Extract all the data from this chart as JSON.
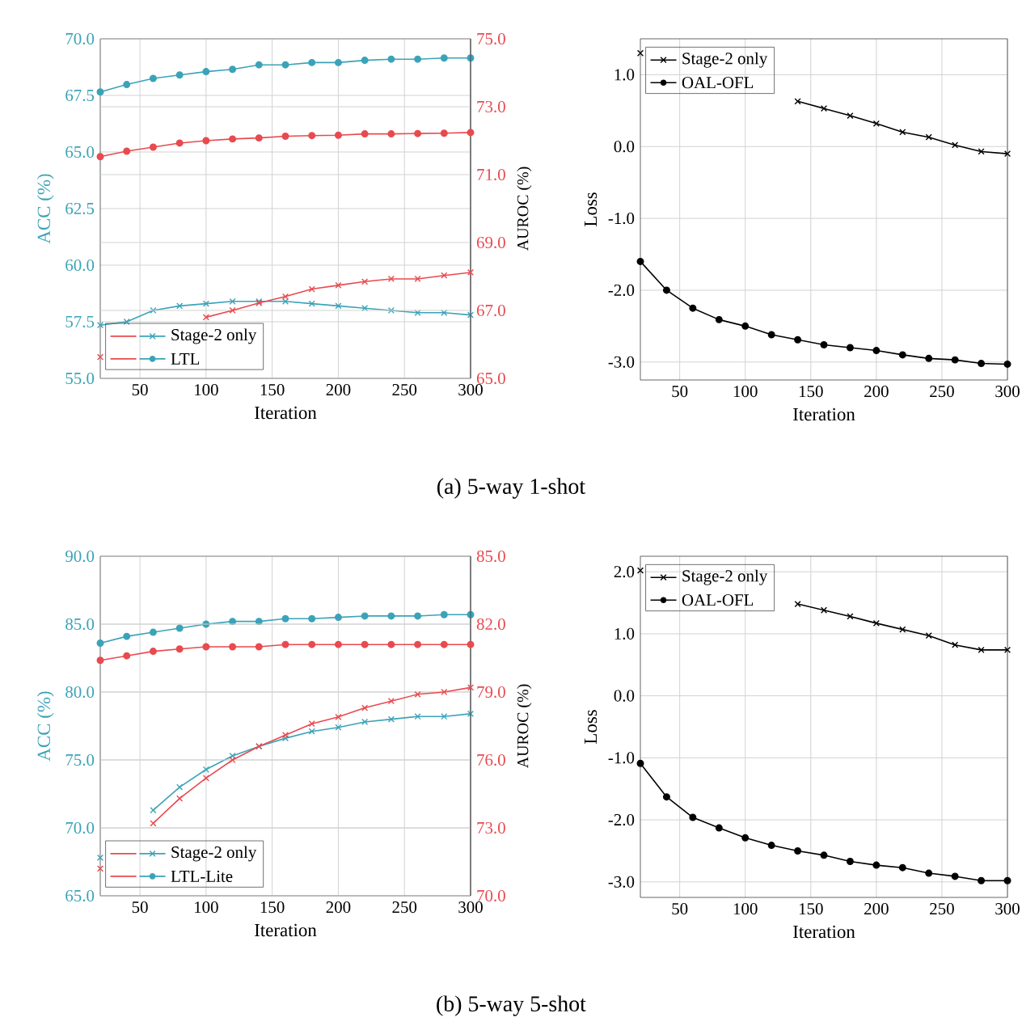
{
  "chart_data": [
    {
      "type": "line",
      "xlabel": "Iteration",
      "ylabel": "ACC (%)",
      "y2label": "AUROC (%)",
      "x": [
        20,
        40,
        60,
        80,
        100,
        120,
        140,
        160,
        180,
        200,
        220,
        240,
        260,
        280,
        300
      ],
      "xlim": [
        20,
        300
      ],
      "xticks": [
        50,
        100,
        150,
        200,
        250,
        300
      ],
      "ylim": [
        55,
        70
      ],
      "yticks": [
        {
          "value": 55,
          "label": "55.0"
        },
        {
          "value": 57.5,
          "label": "57.5"
        },
        {
          "value": 60,
          "label": "60.0"
        },
        {
          "value": 62.5,
          "label": "62.5"
        },
        {
          "value": 65,
          "label": "65.0"
        },
        {
          "value": 67.5,
          "label": "67.5"
        },
        {
          "value": 70,
          "label": "70.0"
        }
      ],
      "y2lim": [
        65,
        75
      ],
      "y2ticks": [
        {
          "value": 65,
          "label": "65.0"
        },
        {
          "value": 67,
          "label": "67.0"
        },
        {
          "value": 69,
          "label": "69.0"
        },
        {
          "value": 71,
          "label": "71.0"
        },
        {
          "value": 73,
          "label": "73.0"
        },
        {
          "value": 75,
          "label": "75.0"
        }
      ],
      "grid": true,
      "legend": "bottom left",
      "series": [
        {
          "color": "#e84a4f",
          "axis": "y2",
          "marker": "cross",
          "values": [
            65.63,
            null,
            null,
            null,
            66.8,
            67.0,
            67.22,
            67.41,
            67.63,
            67.74,
            67.85,
            67.93,
            67.93,
            68.03,
            68.12
          ]
        },
        {
          "name": "Stage-2 only",
          "color": "#3ba3b8",
          "marker": "cross",
          "values": [
            57.35,
            57.5,
            58.0,
            58.2,
            58.3,
            58.4,
            58.4,
            58.4,
            58.3,
            58.2,
            58.1,
            58.0,
            57.9,
            57.9,
            57.8
          ]
        },
        {
          "color": "#e84a4f",
          "axis": "y2",
          "marker": "circle",
          "values": [
            71.53,
            71.69,
            71.81,
            71.93,
            72.0,
            72.05,
            72.08,
            72.13,
            72.15,
            72.16,
            72.2,
            72.2,
            72.21,
            72.22,
            72.24
          ]
        },
        {
          "name": "LTL",
          "color": "#3ba3b8",
          "marker": "circle",
          "values": [
            67.65,
            67.98,
            68.25,
            68.4,
            68.55,
            68.65,
            68.85,
            68.85,
            68.95,
            68.95,
            69.05,
            69.1,
            69.1,
            69.15,
            69.15
          ]
        }
      ],
      "annotations": [
        "(a) 5-way 1-shot"
      ]
    },
    {
      "type": "line",
      "xlabel": "Iteration",
      "ylabel": "Loss",
      "x": [
        20,
        40,
        60,
        80,
        100,
        120,
        140,
        160,
        180,
        200,
        220,
        240,
        260,
        280,
        300
      ],
      "xlim": [
        20,
        300
      ],
      "xticks": [
        50,
        100,
        150,
        200,
        250,
        300
      ],
      "ylim": [
        -3.25,
        1.5
      ],
      "yticks": [
        {
          "value": -3,
          "label": "-3.0"
        },
        {
          "value": -2,
          "label": "-2.0"
        },
        {
          "value": -1,
          "label": "-1.0"
        },
        {
          "value": 0,
          "label": "0.0"
        },
        {
          "value": 1,
          "label": "1.0"
        }
      ],
      "grid": true,
      "legend": "top left",
      "series": [
        {
          "name": "Stage-2 only",
          "color": "#000000",
          "marker": "cross",
          "values": [
            1.3,
            null,
            null,
            null,
            null,
            null,
            0.63,
            0.53,
            0.43,
            0.32,
            0.2,
            0.13,
            0.02,
            -0.07,
            -0.1
          ]
        },
        {
          "name": "OAL-OFL",
          "color": "#000000",
          "marker": "circle",
          "values": [
            -1.6,
            -2.0,
            -2.25,
            -2.41,
            -2.5,
            -2.62,
            -2.69,
            -2.76,
            -2.8,
            -2.84,
            -2.9,
            -2.95,
            -2.97,
            -3.02,
            -3.03
          ]
        }
      ]
    },
    {
      "type": "line",
      "xlabel": "Iteration",
      "ylabel": "ACC (%)",
      "y2label": "AUROC (%)",
      "x": [
        20,
        40,
        60,
        80,
        100,
        120,
        140,
        160,
        180,
        200,
        220,
        240,
        260,
        280,
        300
      ],
      "xlim": [
        20,
        300
      ],
      "xticks": [
        50,
        100,
        150,
        200,
        250,
        300
      ],
      "ylim": [
        65,
        90
      ],
      "yticks": [
        {
          "value": 65,
          "label": "65.0"
        },
        {
          "value": 70,
          "label": "70.0"
        },
        {
          "value": 75,
          "label": "75.0"
        },
        {
          "value": 80,
          "label": "80.0"
        },
        {
          "value": 85,
          "label": "85.0"
        },
        {
          "value": 90,
          "label": "90.0"
        }
      ],
      "y2lim": [
        70,
        85
      ],
      "y2ticks": [
        {
          "value": 70,
          "label": "70.0"
        },
        {
          "value": 73,
          "label": "73.0"
        },
        {
          "value": 76,
          "label": "76.0"
        },
        {
          "value": 79,
          "label": "79.0"
        },
        {
          "value": 82,
          "label": "82.0"
        },
        {
          "value": 85,
          "label": "85.0"
        }
      ],
      "grid": true,
      "legend": "bottom left",
      "series": [
        {
          "color": "#e84a4f",
          "axis": "y2",
          "marker": "cross",
          "values": [
            71.2,
            null,
            73.2,
            74.3,
            75.2,
            76.0,
            76.6,
            77.1,
            77.6,
            77.9,
            78.3,
            78.6,
            78.9,
            79.0,
            79.2
          ]
        },
        {
          "name": "Stage-2 only",
          "color": "#3ba3b8",
          "marker": "cross",
          "values": [
            67.8,
            null,
            71.3,
            73.0,
            74.3,
            75.3,
            76.0,
            76.6,
            77.1,
            77.4,
            77.8,
            78.0,
            78.2,
            78.2,
            78.4
          ]
        },
        {
          "color": "#e84a4f",
          "axis": "y2",
          "marker": "circle",
          "values": [
            80.4,
            80.6,
            80.8,
            80.9,
            81.0,
            81.0,
            81.0,
            81.1,
            81.1,
            81.1,
            81.1,
            81.1,
            81.1,
            81.1,
            81.1
          ]
        },
        {
          "name": "LTL-Lite",
          "color": "#3ba3b8",
          "marker": "circle",
          "values": [
            83.6,
            84.1,
            84.4,
            84.7,
            85.0,
            85.2,
            85.2,
            85.4,
            85.4,
            85.5,
            85.6,
            85.6,
            85.6,
            85.7,
            85.7
          ]
        }
      ],
      "annotations": [
        "(b) 5-way 5-shot"
      ]
    },
    {
      "type": "line",
      "xlabel": "Iteration",
      "ylabel": "Loss",
      "x": [
        20,
        40,
        60,
        80,
        100,
        120,
        140,
        160,
        180,
        200,
        220,
        240,
        260,
        280,
        300
      ],
      "xlim": [
        20,
        300
      ],
      "xticks": [
        50,
        100,
        150,
        200,
        250,
        300
      ],
      "ylim": [
        -3.25,
        2.25
      ],
      "yticks": [
        {
          "value": -3,
          "label": "-3.0"
        },
        {
          "value": -2,
          "label": "-2.0"
        },
        {
          "value": -1,
          "label": "-1.0"
        },
        {
          "value": 0,
          "label": "0.0"
        },
        {
          "value": 1,
          "label": "1.0"
        },
        {
          "value": 2,
          "label": "2.0"
        }
      ],
      "grid": true,
      "legend": "top left",
      "series": [
        {
          "name": "Stage-2 only",
          "color": "#000000",
          "marker": "cross",
          "values": [
            2.02,
            null,
            null,
            null,
            null,
            null,
            1.48,
            1.38,
            1.28,
            1.17,
            1.07,
            0.97,
            0.82,
            0.74,
            0.74
          ]
        },
        {
          "name": "OAL-OFL",
          "color": "#000000",
          "marker": "circle",
          "values": [
            -1.09,
            -1.63,
            -1.96,
            -2.13,
            -2.29,
            -2.41,
            -2.5,
            -2.57,
            -2.67,
            -2.73,
            -2.77,
            -2.86,
            -2.91,
            -2.98,
            -2.98
          ]
        }
      ]
    }
  ]
}
